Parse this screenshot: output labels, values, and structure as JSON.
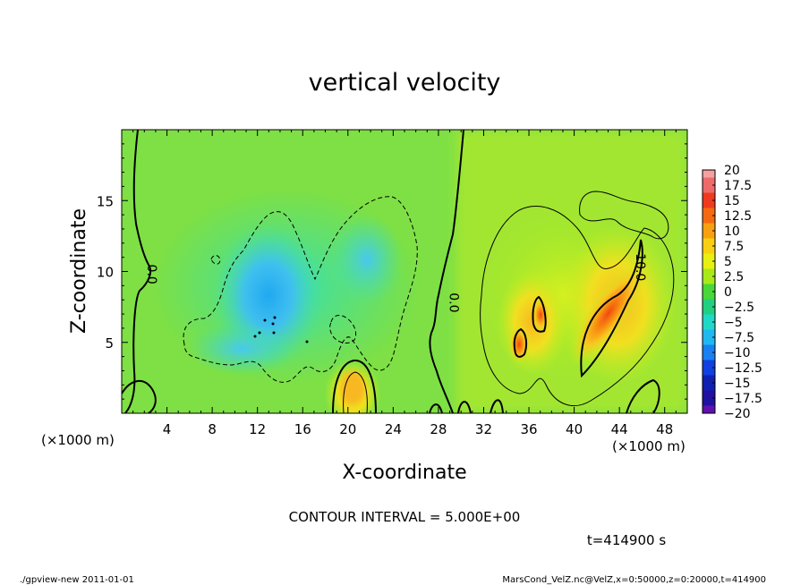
{
  "chart_data": {
    "type": "heatmap",
    "title": "vertical velocity",
    "xlabel": "X-coordinate",
    "ylabel": "Z-coordinate",
    "x_unit": "(×1000 m)",
    "y_unit": "(×1000 m)",
    "xlim": [
      0,
      50
    ],
    "ylim": [
      0,
      20
    ],
    "x_ticks": [
      4,
      8,
      12,
      16,
      20,
      24,
      28,
      32,
      36,
      40,
      44,
      48
    ],
    "y_ticks": [
      5,
      10,
      15
    ],
    "colorbar": {
      "levels": [
        20,
        17.5,
        15,
        12.5,
        10,
        7.5,
        5,
        2.5,
        0,
        -2.5,
        -5,
        -7.5,
        -10,
        -12.5,
        -15,
        -17.5,
        -20
      ],
      "labels": [
        "20",
        "17.5",
        "15",
        "12.5",
        "10",
        "7.5",
        "5",
        "2.5",
        "0",
        "−2.5",
        "−5",
        "−7.5",
        "−10",
        "−12.5",
        "−15",
        "−17.5",
        "−20"
      ],
      "colors": [
        "#f4a0a0",
        "#ee6a6a",
        "#f03a1e",
        "#f56a10",
        "#f8a010",
        "#f8d010",
        "#e8f010",
        "#a8ea18",
        "#48d838",
        "#20d080",
        "#20d8c8",
        "#20b8f0",
        "#1880f0",
        "#1040e0",
        "#1020b0",
        "#2010a0",
        "#6010b0"
      ]
    },
    "contour_labels": [
      {
        "text": "0.0",
        "x": 2.3,
        "z": 9.8
      },
      {
        "text": "0.0",
        "x": 29,
        "z": 7.8
      },
      {
        "text": "10.0",
        "x": 45.5,
        "z": 10.3
      }
    ],
    "features": [
      {
        "kind": "downdraft",
        "x": 13,
        "z": 7,
        "peak": -7.5
      },
      {
        "kind": "updraft",
        "x": 20.5,
        "z": 2,
        "peak": 7.5
      },
      {
        "kind": "updraft",
        "x": 36,
        "z": 6,
        "peak": 12.5
      },
      {
        "kind": "updraft",
        "x": 44,
        "z": 7,
        "peak": 12.5
      }
    ]
  },
  "contour_interval": "CONTOUR INTERVAL = 5.000E+00",
  "time_label": "t=414900 s",
  "footer_left": "./gpview-new   2011-01-01",
  "footer_right": "MarsCond_VelZ.nc@VelZ,x=0:50000,z=0:20000,t=414900"
}
